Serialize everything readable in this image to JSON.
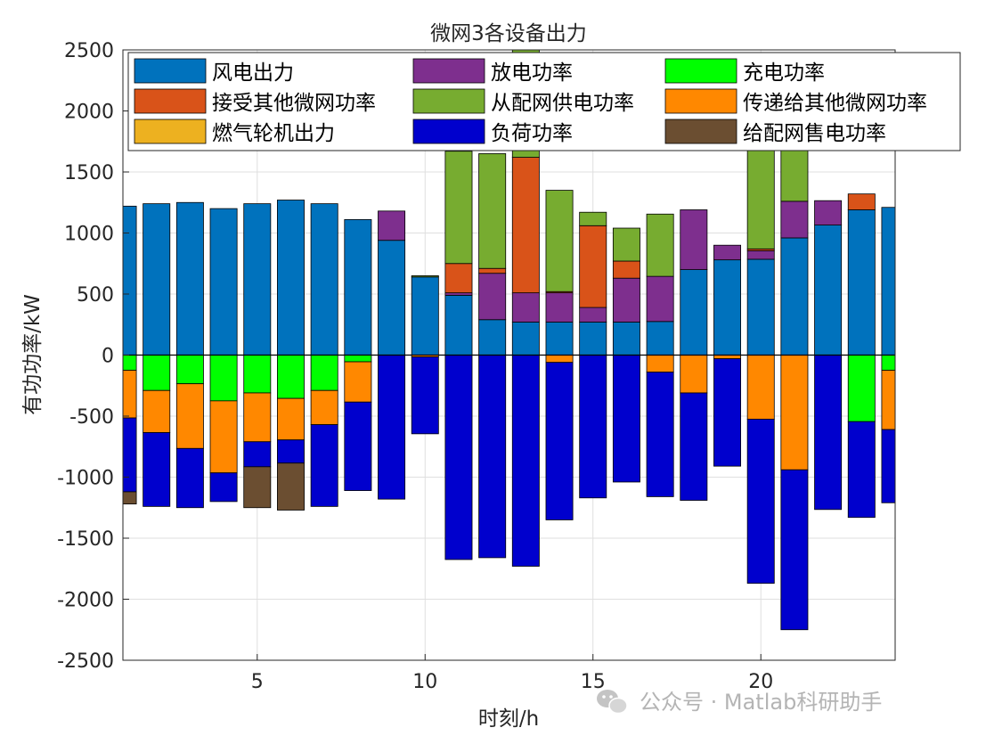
{
  "chart_data": {
    "type": "bar",
    "stacked": true,
    "title": "微网3各设备出力",
    "xlabel": "时刻/h",
    "ylabel": "有功功率/kW",
    "xlim": [
      1,
      24
    ],
    "ylim": [
      -2500,
      2500
    ],
    "xticks": [
      5,
      10,
      15,
      20
    ],
    "yticks": [
      -2500,
      -2000,
      -1500,
      -1000,
      -500,
      0,
      500,
      1000,
      1500,
      2000,
      2500
    ],
    "grid": true,
    "legend_position": "top (3 columns)",
    "x": [
      1,
      2,
      3,
      4,
      5,
      6,
      7,
      8,
      9,
      10,
      11,
      12,
      13,
      14,
      15,
      16,
      17,
      18,
      19,
      20,
      21,
      22,
      23,
      24
    ],
    "series": [
      {
        "name": "风电出力",
        "color": "#0072BD",
        "values": [
          1220,
          1240,
          1250,
          1200,
          1240,
          1270,
          1240,
          1110,
          940,
          640,
          490,
          290,
          270,
          270,
          270,
          270,
          275,
          700,
          780,
          785,
          960,
          1065,
          1190,
          1210
        ]
      },
      {
        "name": "放电功率",
        "color": "#7E2F8E",
        "values": [
          0,
          0,
          0,
          0,
          0,
          0,
          0,
          0,
          240,
          0,
          20,
          380,
          240,
          240,
          120,
          360,
          370,
          490,
          120,
          70,
          300,
          200,
          0,
          0
        ]
      },
      {
        "name": "充电功率",
        "color": "#00FF00",
        "values": [
          -125,
          -290,
          -235,
          -375,
          -310,
          -355,
          -290,
          -55,
          0,
          0,
          0,
          0,
          0,
          0,
          0,
          0,
          0,
          0,
          0,
          0,
          0,
          0,
          -545,
          -125
        ]
      },
      {
        "name": "接受其他微网功率",
        "color": "#D95319",
        "values": [
          0,
          0,
          0,
          0,
          0,
          0,
          0,
          0,
          0,
          0,
          240,
          40,
          1110,
          10,
          670,
          140,
          0,
          0,
          0,
          15,
          0,
          0,
          130,
          0
        ]
      },
      {
        "name": "从配网供电功率",
        "color": "#77AC30",
        "values": [
          0,
          0,
          0,
          0,
          0,
          0,
          0,
          0,
          0,
          10,
          920,
          940,
          1000,
          830,
          110,
          270,
          510,
          0,
          0,
          1300,
          1000,
          0,
          0,
          0
        ]
      },
      {
        "name": "传递给其他微网功率",
        "color": "#FF8800",
        "values": [
          -390,
          -345,
          -530,
          -590,
          -400,
          -340,
          -280,
          -330,
          0,
          -15,
          0,
          0,
          0,
          -60,
          0,
          0,
          -140,
          -310,
          -30,
          -525,
          -940,
          0,
          0,
          -485
        ]
      },
      {
        "name": "燃气轮机出力",
        "color": "#EDB120",
        "values": [
          0,
          0,
          0,
          0,
          0,
          0,
          0,
          0,
          0,
          0,
          0,
          0,
          0,
          0,
          0,
          0,
          0,
          0,
          0,
          0,
          0,
          0,
          0,
          0
        ]
      },
      {
        "name": "负荷功率",
        "color": "#0000CD",
        "values": [
          -605,
          -605,
          -485,
          -235,
          -205,
          -190,
          -670,
          -725,
          -1180,
          -630,
          -1675,
          -1660,
          -1730,
          -1290,
          -1170,
          -1040,
          -1020,
          -880,
          -880,
          -1345,
          -1310,
          -1265,
          -785,
          -600
        ]
      },
      {
        "name": "给配网售电功率",
        "color": "#6B4E31",
        "values": [
          -100,
          0,
          0,
          0,
          -335,
          -385,
          0,
          0,
          0,
          0,
          0,
          0,
          0,
          0,
          0,
          0,
          0,
          0,
          0,
          0,
          0,
          0,
          0,
          0
        ]
      }
    ]
  },
  "legend_layout": [
    [
      "风电出力",
      "放电功率",
      "充电功率"
    ],
    [
      "接受其他微网功率",
      "从配网供电功率",
      "传递给其他微网功率"
    ],
    [
      "燃气轮机出力",
      "负荷功率",
      "给配网售电功率"
    ]
  ],
  "watermark": {
    "text": "公众号 · Matlab科研助手",
    "icon": "wechat-icon"
  }
}
